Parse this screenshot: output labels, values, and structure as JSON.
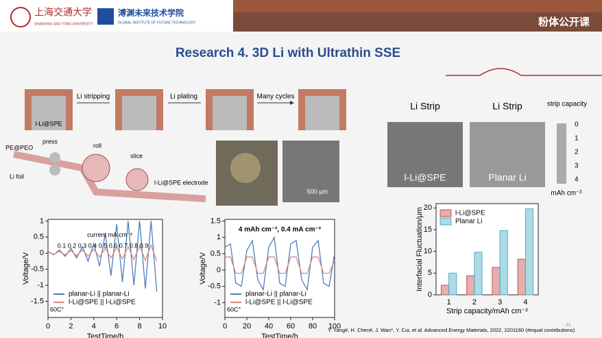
{
  "header": {
    "university": "上海交通大学",
    "university_en": "SHANGHAI JIAO TONG UNIVERSITY",
    "institute": "溥渊未来技术学院",
    "institute_en": "GLOBAL INSTITUTE OF FUTURE TECHNOLOGY",
    "brand": "粉体公开课"
  },
  "title": "Research 4. 3D Li with Ultrathin SSE",
  "schematic": {
    "steps": [
      "Li stripping",
      "Li plating",
      "Many cycles"
    ],
    "electrode": "l-Li@SPE",
    "roll_labels": {
      "peo": "PE@PEO",
      "press": "press",
      "roll": "roll",
      "slice": "slice",
      "foil": "Li foil",
      "electrode": "l-Li@SPE electrode"
    },
    "scale_bar": "500 μm"
  },
  "strip_figure": {
    "heading": "Li Strip",
    "left": "l-Li@SPE",
    "right": "Planar Li",
    "scale_title": "strip capacity",
    "scale_ticks": [
      "0",
      "1",
      "2",
      "3",
      "4"
    ],
    "unit": "mAh cm⁻²"
  },
  "chart_data": [
    {
      "type": "line",
      "ylabel": "Voltage/V",
      "xlabel": "TestTime/h",
      "xlim": [
        0,
        10
      ],
      "xticks": [
        0,
        2,
        4,
        6,
        8,
        10
      ],
      "ylim": [
        -2,
        1.05
      ],
      "yticks": [
        -1.5,
        -1,
        -0.5,
        0,
        0.5,
        1
      ],
      "legend": "lower left",
      "annotations": [
        "current mA cm⁻²",
        "0.1 0.2 0.3 0.4 0.5 0.6 0.7 0.8 0.9",
        "60C°"
      ],
      "x": [
        0,
        0.5,
        1,
        1.5,
        2,
        2.5,
        3,
        3.5,
        4,
        4.5,
        5,
        5.5,
        6,
        6.5,
        7,
        7.5,
        8,
        8.5,
        9,
        9.5
      ],
      "series": [
        {
          "name": "planar-Li || planar-Li",
          "color": "#4a7fb8",
          "values": [
            0.05,
            -0.05,
            0.1,
            -0.1,
            0.15,
            -0.15,
            0.2,
            -0.25,
            0.3,
            -0.4,
            0.6,
            -0.7,
            0.9,
            -0.9,
            1,
            -1,
            1,
            -1.1,
            1,
            -1.2
          ]
        },
        {
          "name": "l-Li@SPE || l-Li@SPE",
          "color": "#e08585",
          "values": [
            0.03,
            -0.03,
            0.05,
            -0.05,
            0.08,
            -0.08,
            0.1,
            -0.1,
            0.12,
            -0.12,
            0.15,
            -0.15,
            0.18,
            -0.18,
            0.2,
            -0.2,
            0.22,
            -0.22,
            0.25,
            -0.25
          ]
        }
      ]
    },
    {
      "type": "line",
      "ylabel": "Voltage/V",
      "xlabel": "TestTime/h",
      "xlim": [
        0,
        100
      ],
      "xticks": [
        0,
        20,
        40,
        60,
        80,
        100
      ],
      "ylim": [
        -1.45,
        1.55
      ],
      "yticks": [
        -1,
        -0.5,
        0,
        0.5,
        1,
        1.5
      ],
      "legend": "lower left",
      "annotations": [
        "4 mAh cm⁻², 0.4 mA cm⁻²",
        "60C°"
      ],
      "x": [
        0,
        5,
        10,
        15,
        20,
        25,
        30,
        35,
        40,
        45,
        50,
        55,
        60,
        65,
        70,
        75,
        80,
        85,
        90,
        95,
        100
      ],
      "series": [
        {
          "name": "planar-Li || planar-Li",
          "color": "#4a7fb8",
          "values": [
            0.7,
            0.8,
            -0.4,
            -0.5,
            0.6,
            0.9,
            -0.3,
            -0.6,
            0.7,
            1,
            -0.4,
            -0.5,
            0.8,
            0.9,
            -0.3,
            -0.6,
            0.7,
            0.9,
            -0.4,
            -0.5,
            0.5
          ]
        },
        {
          "name": "l-Li@SPE || l-Li@SPE",
          "color": "#e08585",
          "values": [
            0.4,
            0.4,
            -0.1,
            -0.1,
            0.4,
            0.4,
            -0.1,
            -0.1,
            0.4,
            0.4,
            -0.1,
            -0.1,
            0.4,
            0.4,
            -0.1,
            -0.1,
            0.4,
            0.4,
            -0.1,
            -0.1,
            0.3
          ]
        }
      ]
    },
    {
      "type": "bar",
      "ylabel": "Interfacial Fluctuation/μm",
      "xlabel": "Strip capacity/mAh cm⁻²",
      "categories": [
        "1",
        "2",
        "3",
        "4"
      ],
      "ylim": [
        0,
        21
      ],
      "yticks": [
        0,
        5,
        10,
        15,
        20
      ],
      "legend": "upper left",
      "series": [
        {
          "name": "l-Li@SPE",
          "color": "#c0504d",
          "values": [
            2.2,
            4.4,
            6.3,
            8.2
          ]
        },
        {
          "name": "Planar Li",
          "color": "#4bacc6",
          "values": [
            5,
            9.8,
            14.8,
            19.8
          ]
        }
      ]
    }
  ],
  "footer": {
    "citation": "Y. Yang#, H. Chen#, J. Wan*, Y. Cui, et al. Advanced Energy Materials, 2022, 2201160 (#equal contributions)",
    "page": "21"
  }
}
